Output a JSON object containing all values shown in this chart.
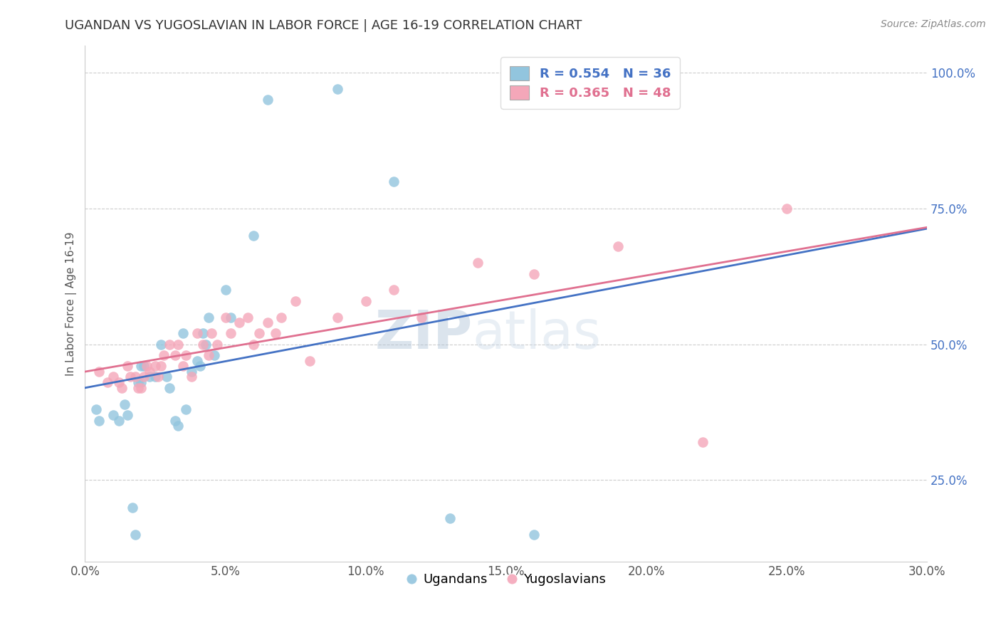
{
  "title": "UGANDAN VS YUGOSLAVIAN IN LABOR FORCE | AGE 16-19 CORRELATION CHART",
  "source_text": "Source: ZipAtlas.com",
  "ylabel": "In Labor Force | Age 16-19",
  "xlim": [
    0.0,
    0.3
  ],
  "ylim": [
    0.1,
    1.05
  ],
  "xticks": [
    0.0,
    0.05,
    0.1,
    0.15,
    0.2,
    0.25,
    0.3
  ],
  "xticklabels": [
    "0.0%",
    "5.0%",
    "10.0%",
    "15.0%",
    "20.0%",
    "25.0%",
    "30.0%"
  ],
  "yticks": [
    0.25,
    0.5,
    0.75,
    1.0
  ],
  "yticklabels": [
    "25.0%",
    "50.0%",
    "75.0%",
    "100.0%"
  ],
  "ugandan_color": "#92c5de",
  "yugoslavian_color": "#f4a7b9",
  "ugandan_line_color": "#4472c4",
  "yugoslavian_line_color": "#e07090",
  "R_ugandan": 0.554,
  "N_ugandan": 36,
  "R_yugoslavian": 0.365,
  "N_yugoslavian": 48,
  "watermark_zip": "ZIP",
  "watermark_atlas": "atlas",
  "background_color": "#ffffff",
  "ugandan_x": [
    0.004,
    0.005,
    0.01,
    0.012,
    0.014,
    0.015,
    0.017,
    0.018,
    0.019,
    0.02,
    0.02,
    0.021,
    0.023,
    0.025,
    0.027,
    0.029,
    0.03,
    0.032,
    0.033,
    0.035,
    0.036,
    0.038,
    0.04,
    0.041,
    0.042,
    0.043,
    0.044,
    0.046,
    0.05,
    0.052,
    0.06,
    0.065,
    0.09,
    0.11,
    0.13,
    0.16
  ],
  "ugandan_y": [
    0.38,
    0.36,
    0.37,
    0.36,
    0.39,
    0.37,
    0.2,
    0.15,
    0.43,
    0.43,
    0.46,
    0.46,
    0.44,
    0.44,
    0.5,
    0.44,
    0.42,
    0.36,
    0.35,
    0.52,
    0.38,
    0.45,
    0.47,
    0.46,
    0.52,
    0.5,
    0.55,
    0.48,
    0.6,
    0.55,
    0.7,
    0.95,
    0.97,
    0.8,
    0.18,
    0.15
  ],
  "yugoslavian_x": [
    0.005,
    0.008,
    0.01,
    0.012,
    0.013,
    0.015,
    0.016,
    0.018,
    0.019,
    0.02,
    0.021,
    0.022,
    0.023,
    0.025,
    0.026,
    0.027,
    0.028,
    0.03,
    0.032,
    0.033,
    0.035,
    0.036,
    0.038,
    0.04,
    0.042,
    0.044,
    0.045,
    0.047,
    0.05,
    0.052,
    0.055,
    0.058,
    0.06,
    0.062,
    0.065,
    0.068,
    0.07,
    0.075,
    0.08,
    0.09,
    0.1,
    0.11,
    0.12,
    0.14,
    0.16,
    0.19,
    0.22,
    0.25
  ],
  "yugoslavian_y": [
    0.45,
    0.43,
    0.44,
    0.43,
    0.42,
    0.46,
    0.44,
    0.44,
    0.42,
    0.42,
    0.44,
    0.46,
    0.45,
    0.46,
    0.44,
    0.46,
    0.48,
    0.5,
    0.48,
    0.5,
    0.46,
    0.48,
    0.44,
    0.52,
    0.5,
    0.48,
    0.52,
    0.5,
    0.55,
    0.52,
    0.54,
    0.55,
    0.5,
    0.52,
    0.54,
    0.52,
    0.55,
    0.58,
    0.47,
    0.55,
    0.58,
    0.6,
    0.55,
    0.65,
    0.63,
    0.68,
    0.32,
    0.75
  ]
}
